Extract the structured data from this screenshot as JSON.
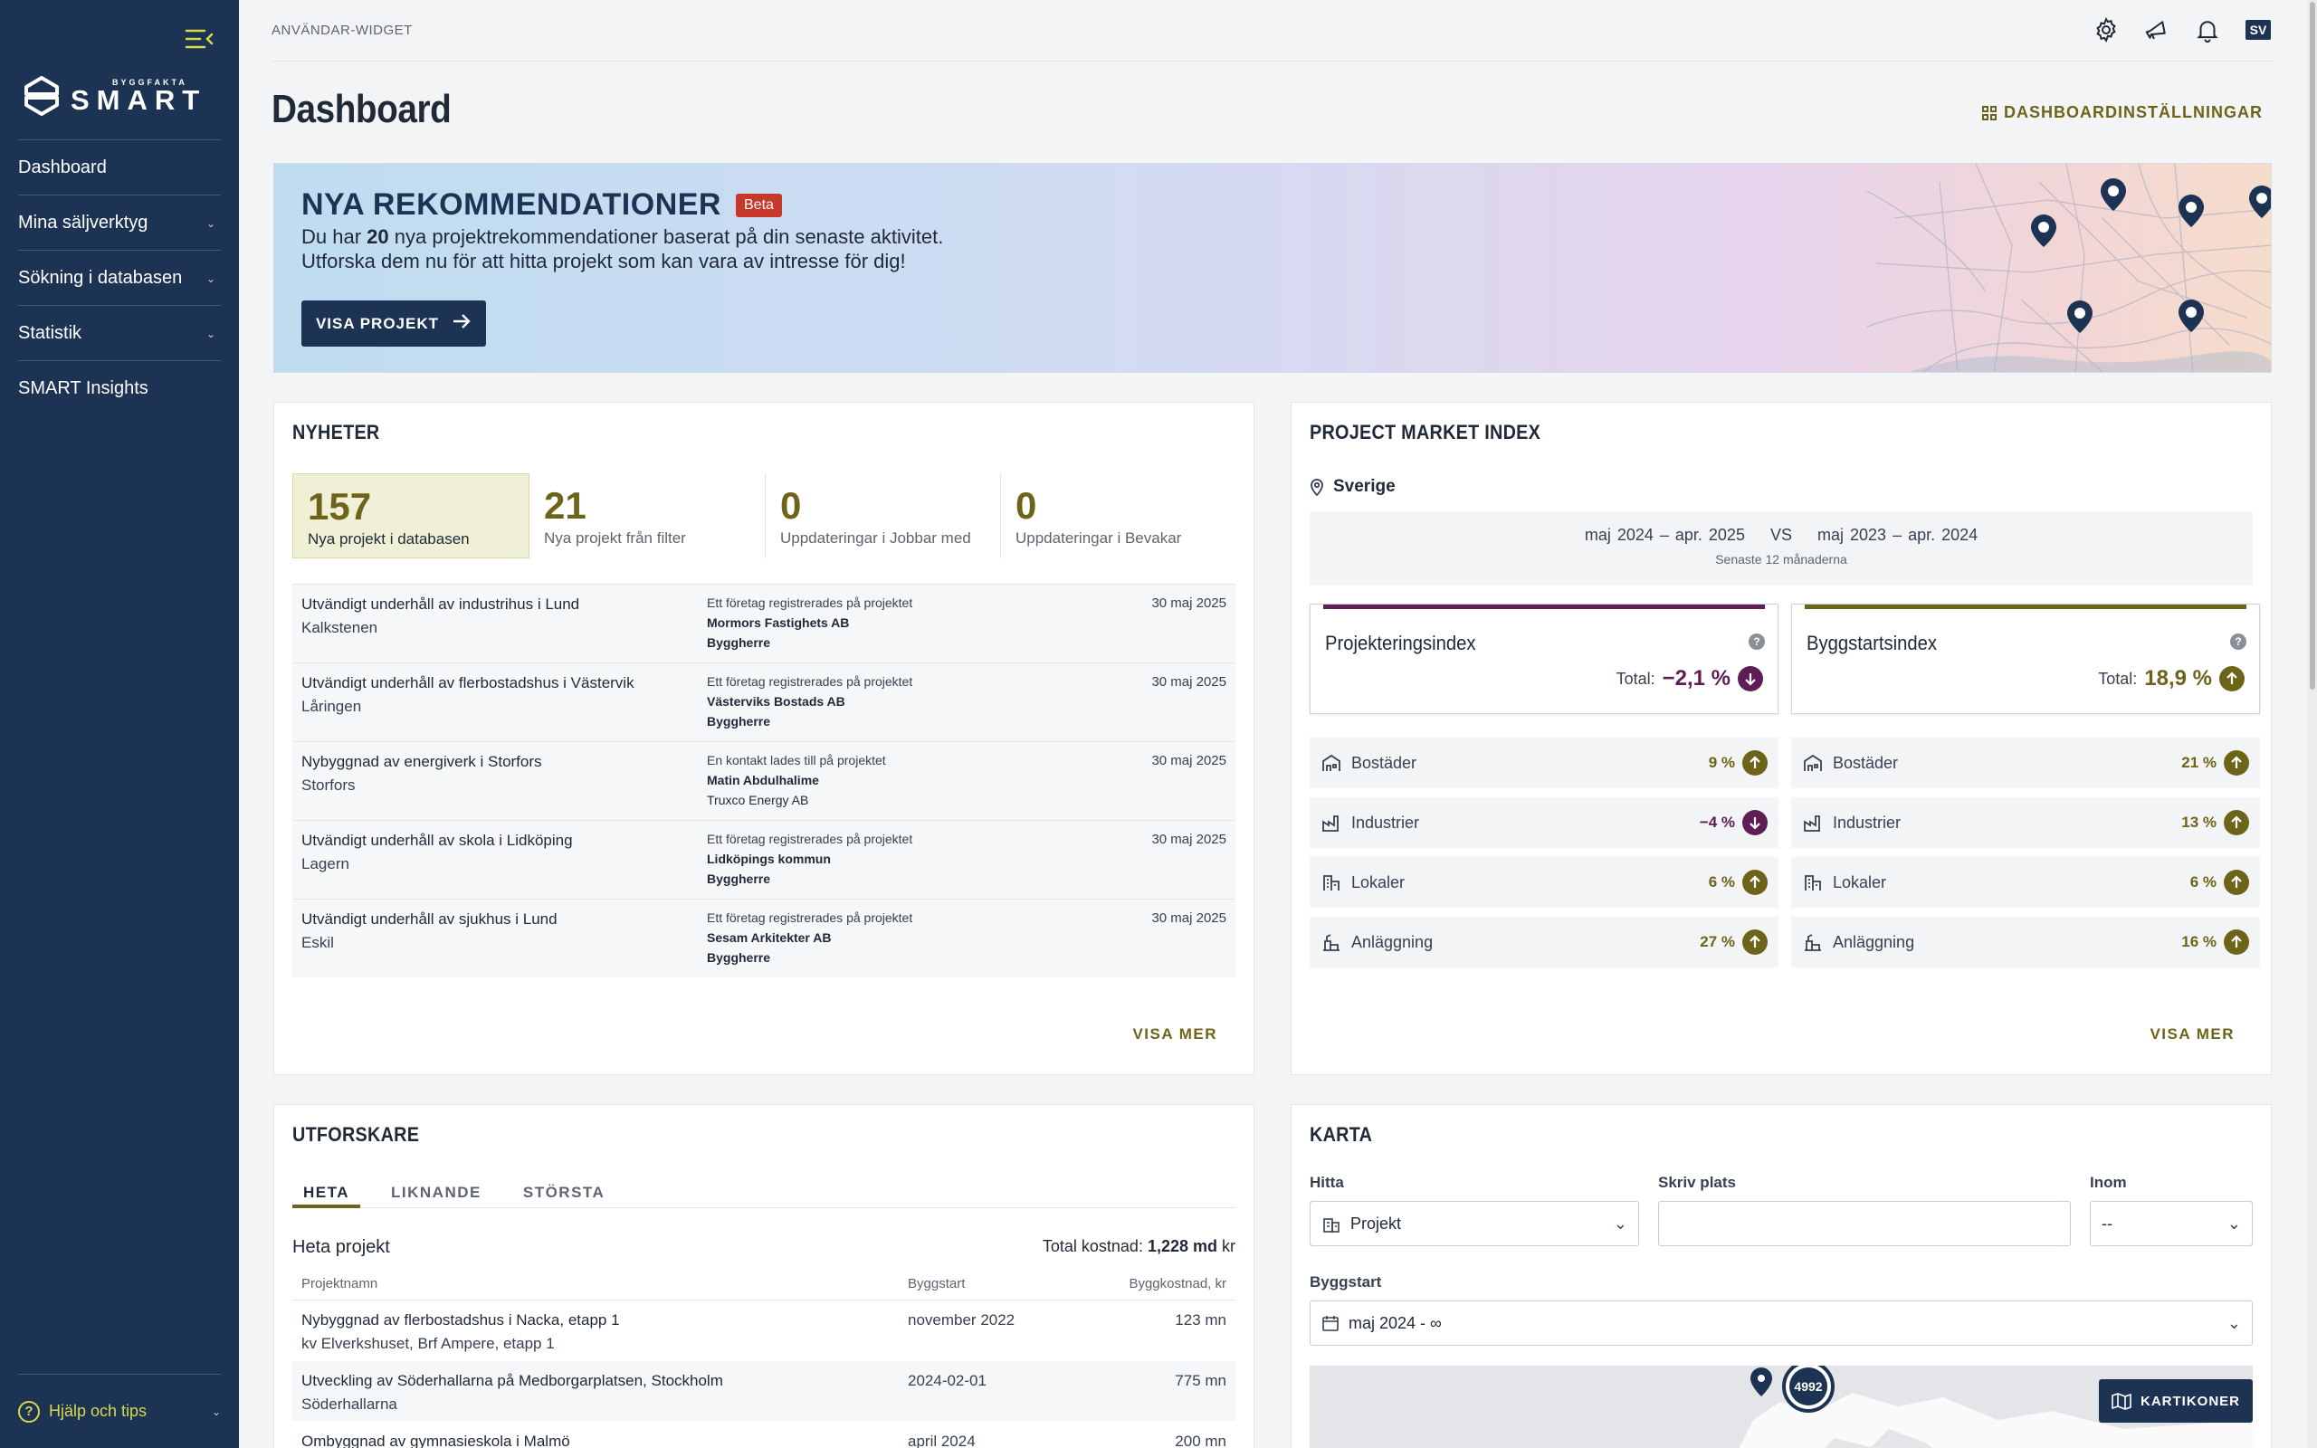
{
  "sidebar": {
    "logo_small": "BYGGFAKTA",
    "logo_big": "SMART",
    "items": [
      {
        "label": "Dashboard",
        "has_children": false
      },
      {
        "label": "Mina säljverktyg",
        "has_children": true
      },
      {
        "label": "Sökning i databasen",
        "has_children": true
      },
      {
        "label": "Statistik",
        "has_children": true
      },
      {
        "label": "SMART Insights",
        "has_children": false
      }
    ],
    "help_label": "Hjälp och tips"
  },
  "topbar": {
    "breadcrumb": "ANVÄNDAR-WIDGET",
    "icons": [
      "gear-icon",
      "megaphone-icon",
      "bell-icon"
    ],
    "language": "SV"
  },
  "page": {
    "title": "Dashboard",
    "settings_label": "DASHBOARDINSTÄLLNINGAR"
  },
  "banner": {
    "title": "NYA REKOMMENDATIONER",
    "badge": "Beta",
    "line1_pre": "Du har ",
    "line1_count": "20",
    "line1_post": " nya projektrekommendationer baserat på din senaste aktivitet.",
    "line2": "Utforska dem nu för att hitta projekt som kan vara av intresse för dig!",
    "button": "VISA PROJEKT"
  },
  "news": {
    "title": "NYHETER",
    "stats": [
      {
        "value": "157",
        "label": "Nya projekt i databasen"
      },
      {
        "value": "21",
        "label": "Nya projekt från filter"
      },
      {
        "value": "0",
        "label": "Uppdateringar i Jobbar med"
      },
      {
        "value": "0",
        "label": "Uppdateringar i Bevakar"
      }
    ],
    "items": [
      {
        "title": "Utvändigt underhåll av industrihus i Lund",
        "sub": "Kalkstenen",
        "event": "Ett företag registrerades på projektet",
        "company": "Mormors Fastighets AB",
        "role": "Byggherre",
        "role_bold": true,
        "date": "30 maj 2025"
      },
      {
        "title": "Utvändigt underhåll av flerbostadshus i Västervik",
        "sub": "Låringen",
        "event": "Ett företag registrerades på projektet",
        "company": "Västerviks Bostads AB",
        "role": "Byggherre",
        "role_bold": true,
        "date": "30 maj 2025"
      },
      {
        "title": "Nybyggnad av energiverk i Storfors",
        "sub": "Storfors",
        "event": "En kontakt lades till på projektet",
        "company": "Matin Abdulhalime",
        "role": "Truxco Energy AB",
        "role_bold": false,
        "date": "30 maj 2025"
      },
      {
        "title": "Utvändigt underhåll av skola i Lidköping",
        "sub": "Lagern",
        "event": "Ett företag registrerades på projektet",
        "company": "Lidköpings kommun",
        "role": "Byggherre",
        "role_bold": true,
        "date": "30 maj 2025"
      },
      {
        "title": "Utvändigt underhåll av sjukhus i Lund",
        "sub": "Eskil",
        "event": "Ett företag registrerades på projektet",
        "company": "Sesam Arkitekter AB",
        "role": "Byggherre",
        "role_bold": true,
        "date": "30 maj 2025"
      }
    ],
    "more": "VISA MER"
  },
  "pmi": {
    "title": "PROJECT MARKET INDEX",
    "location": "Sverige",
    "period_a": "maj 2024  – apr. 2025",
    "vs": "VS",
    "period_b": "maj 2023  – apr. 2024",
    "period_note": "Senaste 12 månaderna",
    "total_label": "Total:",
    "indexes": [
      {
        "name": "Projekteringsindex",
        "total": "−2,1 %",
        "direction": "down",
        "color": "#5e1d54",
        "cats": [
          {
            "name": "Bostäder",
            "value": "9 %",
            "direction": "up",
            "icon": "housing-icon"
          },
          {
            "name": "Industrier",
            "value": "−4 %",
            "direction": "down",
            "icon": "factory-icon"
          },
          {
            "name": "Lokaler",
            "value": "6 %",
            "direction": "up",
            "icon": "premises-icon"
          },
          {
            "name": "Anläggning",
            "value": "27 %",
            "direction": "up",
            "icon": "construction-icon"
          }
        ]
      },
      {
        "name": "Byggstartsindex",
        "total": "18,9 %",
        "direction": "up",
        "color": "#6e6419",
        "cats": [
          {
            "name": "Bostäder",
            "value": "21 %",
            "direction": "up",
            "icon": "housing-icon"
          },
          {
            "name": "Industrier",
            "value": "13 %",
            "direction": "up",
            "icon": "factory-icon"
          },
          {
            "name": "Lokaler",
            "value": "6 %",
            "direction": "up",
            "icon": "premises-icon"
          },
          {
            "name": "Anläggning",
            "value": "16 %",
            "direction": "up",
            "icon": "construction-icon"
          }
        ]
      }
    ],
    "more": "VISA MER"
  },
  "explorer": {
    "title": "UTFORSKARE",
    "tabs": [
      "HETA",
      "LIKNANDE",
      "STÖRSTA"
    ],
    "active_tab": 0,
    "list_title": "Heta projekt",
    "total_prefix": "Total kostnad: ",
    "total_value": "1,228 md",
    "total_unit": " kr",
    "columns": [
      "Projektnamn",
      "Byggstart",
      "Byggkostnad, kr"
    ],
    "rows": [
      {
        "name": "Nybyggnad av flerbostadshus i Nacka, etapp 1",
        "sub": "kv Elverkshuset, Brf Ampere, etapp 1",
        "start": "november 2022",
        "cost": "123 mn"
      },
      {
        "name": "Utveckling av Söderhallarna på Medborgarplatsen, Stockholm",
        "sub": "Söderhallarna",
        "start": "2024-02-01",
        "cost": "775 mn"
      },
      {
        "name": "Ombyggnad av gymnasieskola i Malmö",
        "sub": "",
        "start": "april 2024",
        "cost": "200 mn"
      }
    ]
  },
  "map": {
    "title": "KARTA",
    "find_label": "Hitta",
    "find_value": "Projekt",
    "place_label": "Skriv plats",
    "place_value": "",
    "within_label": "Inom",
    "within_value": "--",
    "start_label": "Byggstart",
    "start_value": "maj 2024 - ∞",
    "cluster": "4992",
    "icons_button": "KARTIKONER"
  },
  "colors": {
    "sidebar": "#1d3353",
    "accent_olive": "#6e6419",
    "accent_plum": "#5e1d54",
    "beta": "#c7382a"
  }
}
